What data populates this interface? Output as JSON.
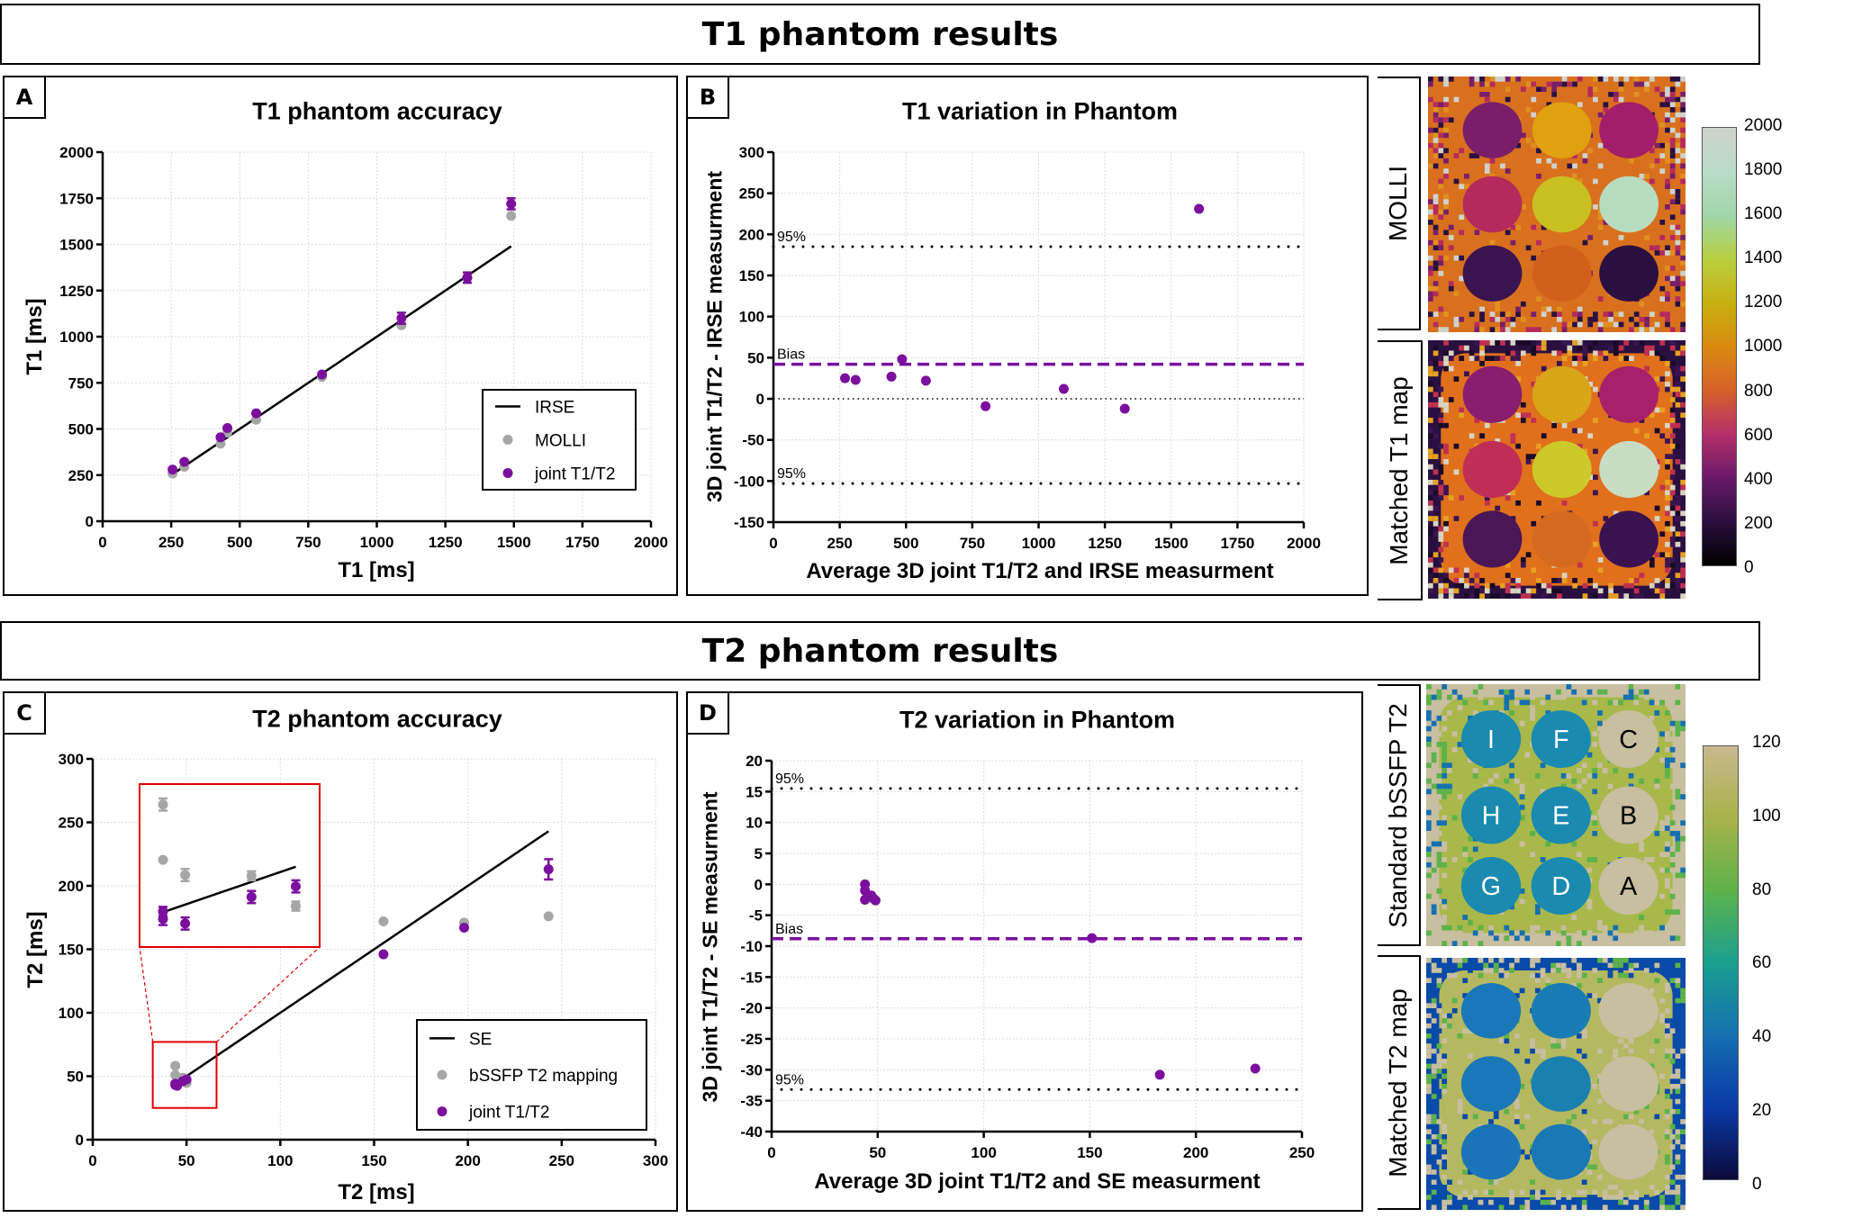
{
  "headers": {
    "t1": "T1 phantom results",
    "t2": "T2 phantom results"
  },
  "panels": {
    "a": {
      "letter": "A",
      "title": "T1 phantom accuracy"
    },
    "b": {
      "letter": "B",
      "title": "T1 variation in Phantom"
    },
    "c": {
      "letter": "C",
      "title": "T2 phantom accuracy"
    },
    "d": {
      "letter": "D",
      "title": "T2 variation in Phantom"
    }
  },
  "chart_data": [
    {
      "type": "scatter",
      "title": "T1 phantom accuracy",
      "xlabel": "T1 [ms]",
      "ylabel": "T1 [ms]",
      "xlim": [
        0,
        2000
      ],
      "ylim": [
        0,
        2000
      ],
      "x_ticks": [
        0,
        250,
        500,
        750,
        1000,
        1250,
        1500,
        1750,
        2000
      ],
      "y_ticks": [
        0,
        250,
        500,
        750,
        1000,
        1250,
        1500,
        1750,
        2000
      ],
      "grid": true,
      "legend_position": "bottom-right",
      "series": [
        {
          "name": "IRSE",
          "type": "line",
          "color": "#000000",
          "x": [
            255,
            1490
          ],
          "y": [
            255,
            1490
          ]
        },
        {
          "name": "MOLLI",
          "type": "scatter",
          "color": "#a6a6a6",
          "x": [
            255,
            298,
            430,
            455,
            560,
            800,
            1090,
            1330,
            1490
          ],
          "y": [
            258,
            295,
            420,
            480,
            550,
            782,
            1062,
            1318,
            1655
          ],
          "err": [
            0,
            0,
            0,
            0,
            0,
            0,
            0,
            0,
            0
          ]
        },
        {
          "name": "joint T1/T2",
          "type": "scatter",
          "color": "#7b0f9e",
          "x": [
            255,
            298,
            430,
            455,
            560,
            800,
            1090,
            1330,
            1490
          ],
          "y": [
            280,
            322,
            455,
            505,
            585,
            795,
            1100,
            1320,
            1720
          ],
          "err": [
            0,
            0,
            0,
            0,
            0,
            0,
            30,
            28,
            30
          ]
        }
      ]
    },
    {
      "type": "scatter",
      "title": "T1 variation in Phantom",
      "xlabel": "Average 3D joint T1/T2 and IRSE measurment",
      "ylabel": "3D joint T1/T2 - IRSE measurment",
      "xlim": [
        0,
        2000
      ],
      "ylim": [
        -150,
        300
      ],
      "x_ticks": [
        0,
        250,
        500,
        750,
        1000,
        1250,
        1500,
        1750,
        2000
      ],
      "y_ticks": [
        -150,
        -100,
        -50,
        0,
        50,
        100,
        150,
        200,
        250,
        300
      ],
      "grid": true,
      "reference_lines": [
        {
          "label": "95%",
          "value": 185,
          "style": "dotted",
          "color": "#000000"
        },
        {
          "label": "Bias",
          "value": 42,
          "style": "dashed",
          "color": "#7b0f9e"
        },
        {
          "label": "",
          "value": 0,
          "style": "fine-dotted",
          "color": "#000000"
        },
        {
          "label": "95%",
          "value": -103,
          "style": "dotted",
          "color": "#000000"
        }
      ],
      "series": [
        {
          "type": "scatter",
          "color": "#7b0f9e",
          "x": [
            270,
            310,
            445,
            485,
            575,
            800,
            1095,
            1325,
            1605
          ],
          "y": [
            25,
            23,
            27,
            48,
            22,
            -9,
            12,
            -12,
            231
          ],
          "err": [
            0,
            0,
            0,
            0,
            0,
            0,
            0,
            0,
            0
          ]
        }
      ]
    },
    {
      "type": "scatter",
      "title": "T2 phantom accuracy",
      "xlabel": "T2 [ms]",
      "ylabel": "T2 [ms]",
      "xlim": [
        0,
        300
      ],
      "ylim": [
        0,
        300
      ],
      "x_ticks": [
        0,
        50,
        100,
        150,
        200,
        250,
        300
      ],
      "y_ticks": [
        0,
        50,
        100,
        150,
        200,
        250,
        300
      ],
      "grid": true,
      "legend_position": "bottom-right",
      "zoom_box": {
        "xlim": [
          32,
          66
        ],
        "ylim": [
          25,
          77
        ]
      },
      "inset": {
        "xlim": [
          42.94,
          51.08
        ],
        "ylim": [
          39.4,
          60.9
        ]
      },
      "series": [
        {
          "name": "SE",
          "type": "line",
          "color": "#000000",
          "x": [
            44,
            243
          ],
          "y": [
            44,
            243
          ]
        },
        {
          "name": "bSSFP T2 mapping",
          "type": "scatter",
          "color": "#a6a6a6",
          "x": [
            44,
            44,
            45,
            48,
            50,
            155,
            198,
            243
          ],
          "y": [
            58.2,
            50.9,
            48.9,
            48.8,
            44.8,
            172,
            171,
            176
          ],
          "err": [
            0.8,
            0,
            0.8,
            0.6,
            0.6,
            0,
            0,
            0
          ]
        },
        {
          "name": "joint T1/T2",
          "type": "scatter",
          "color": "#7b0f9e",
          "x": [
            44,
            44,
            45,
            48,
            50,
            155,
            198,
            243
          ],
          "y": [
            44.1,
            43.1,
            42.5,
            46.0,
            47.4,
            146,
            167,
            213
          ],
          "err": [
            0.6,
            0.8,
            0.8,
            0.8,
            0.8,
            0,
            0,
            8
          ]
        }
      ]
    },
    {
      "type": "scatter",
      "title": "T2 variation in Phantom",
      "xlabel": "Average 3D joint T1/T2  and SE measurment",
      "ylabel": "3D joint T1/T2 - SE measurment",
      "xlim": [
        0,
        250
      ],
      "ylim": [
        -40,
        20
      ],
      "x_ticks": [
        0,
        50,
        100,
        150,
        200,
        250
      ],
      "y_ticks": [
        -40,
        -35,
        -30,
        -25,
        -20,
        -15,
        -10,
        -5,
        0,
        5,
        10,
        15,
        20
      ],
      "grid": true,
      "reference_lines": [
        {
          "label": "95%",
          "value": 15.5,
          "style": "dotted",
          "color": "#000000"
        },
        {
          "label": "Bias",
          "value": -8.8,
          "style": "dashed",
          "color": "#7b0f9e"
        },
        {
          "label": "95%",
          "value": -33.2,
          "style": "dotted",
          "color": "#000000"
        }
      ],
      "series": [
        {
          "type": "scatter",
          "color": "#7b0f9e",
          "x": [
            44,
            44,
            44,
            47,
            48,
            49,
            151,
            183,
            228
          ],
          "y": [
            0,
            -1,
            -2.5,
            -1.8,
            -2.3,
            -2.6,
            -8.7,
            -30.8,
            -29.8
          ],
          "err": [
            0,
            0,
            0,
            0,
            0,
            0,
            0,
            0,
            0
          ]
        }
      ]
    }
  ],
  "maps": {
    "molli": {
      "label": "MOLLI",
      "background": "#d8701e",
      "vial_colors": [
        "#7a1e6a",
        "#e0a010",
        "#a31e6a",
        "#b52a5c",
        "#c8c020",
        "#b8dcc0",
        "#3a1450",
        "#d0601c",
        "#2a1040"
      ],
      "noise": [
        "#cfd2cc",
        "#7a1e6a",
        "#e09020",
        "#b52a5c",
        "#2a1040"
      ],
      "outer": "#d8701e"
    },
    "matched_t1": {
      "label": "Matched T1 map",
      "background": "#e0701c",
      "vial_colors": [
        "#8a1e6e",
        "#d8a418",
        "#a8206a",
        "#c02e56",
        "#ccca2a",
        "#c8dcc4",
        "#4a1656",
        "#d46a20",
        "#3a1250"
      ],
      "noise": [
        "#d8d4c0",
        "#3a1450",
        "#e8a020",
        "#c03050",
        "#1a0a28"
      ],
      "outer": "#2a1040"
    },
    "bssfp_t2": {
      "label": "Standard bSSFP T2",
      "background": "#a8b84a",
      "vial_colors": [
        "#1a8ab0",
        "#1a8ab0",
        "#c8bea0",
        "#1a8ab0",
        "#1a8ab0",
        "#c8bea0",
        "#1a8ab0",
        "#1a8ab0",
        "#c8bea0"
      ],
      "vial_labels": [
        "I",
        "F",
        "C",
        "H",
        "E",
        "B",
        "G",
        "D",
        "A"
      ],
      "vial_label_colors": [
        "#ffffff",
        "#ffffff",
        "#000000",
        "#ffffff",
        "#ffffff",
        "#000000",
        "#ffffff",
        "#ffffff",
        "#000000"
      ],
      "noise": [
        "#c8bea0",
        "#5db24a",
        "#1570b0",
        "#c8bea0"
      ],
      "outer": "#c8bea0"
    },
    "matched_t2": {
      "label": "Matched T2 map",
      "background": "#b4b860",
      "vial_colors": [
        "#1a78b8",
        "#1a7cb4",
        "#c8bea0",
        "#1a78b8",
        "#1a80b0",
        "#c8bea0",
        "#1a74b8",
        "#1a78b4",
        "#c8bea0"
      ],
      "noise": [
        "#c8bea0",
        "#0a4aa8",
        "#5db24a",
        "#c8bea0"
      ],
      "outer": "#0a4aa8"
    }
  },
  "colorbars": {
    "t1": {
      "ticks": [
        "2000",
        "1800",
        "1600",
        "1400",
        "1200",
        "1000",
        "800",
        "600",
        "400",
        "200",
        "0"
      ],
      "colors": [
        "#000000",
        "#2a0f3d",
        "#6b1a6b",
        "#b5306a",
        "#d8602a",
        "#d88a10",
        "#c7b010",
        "#b8cf40",
        "#9fd6a8",
        "#b9dcc6",
        "#cfd2cc"
      ]
    },
    "t2": {
      "ticks": [
        "120",
        "100",
        "80",
        "60",
        "40",
        "20",
        "0"
      ],
      "colors": [
        "#0d0a3a",
        "#0a3aa8",
        "#1570b0",
        "#1aa090",
        "#5db24a",
        "#a8b24a",
        "#c8b98f"
      ]
    }
  }
}
